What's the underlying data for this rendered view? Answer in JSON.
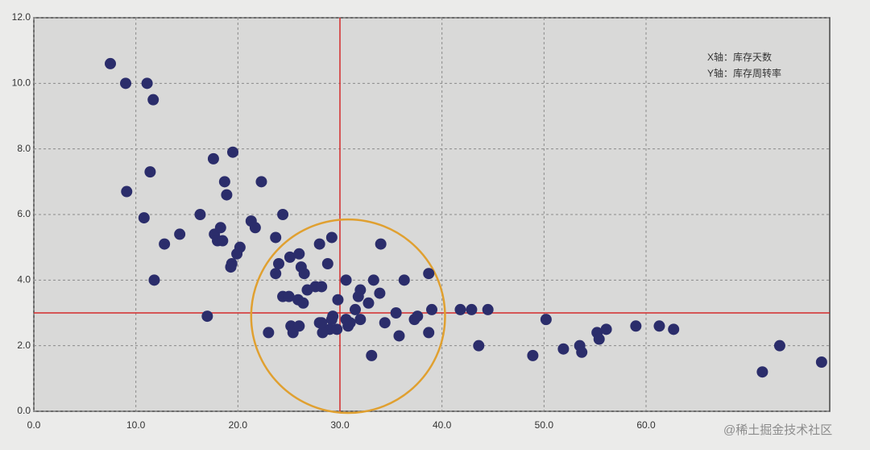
{
  "chart_data": {
    "type": "scatter",
    "annotations": [
      "X轴：库存天数",
      "Y轴：库存周转率"
    ],
    "watermark": "@稀土掘金技术社区",
    "series": [
      {
        "color": "#2b2d6b",
        "x": [
          7.5,
          9,
          11.1,
          11.7,
          9.1,
          11.4,
          10.8,
          11.8,
          12.8,
          14.3,
          16.3,
          17.6,
          19.5,
          18.7,
          18.9,
          22.3,
          17,
          17.7,
          18.3,
          18,
          18.5,
          20.2,
          19.9,
          19.4,
          19.3,
          21.3,
          21.7,
          24.4,
          23.7,
          24,
          23.7,
          25.1,
          26,
          26.2,
          26.5,
          28,
          29.2,
          28.8,
          34,
          24.4,
          25,
          25.9,
          26.4,
          26.8,
          27.6,
          28.2,
          29.8,
          30.6,
          32,
          31.8,
          33.3,
          33.9,
          36.3,
          38.7,
          32.8,
          31.5,
          29.3,
          29.2,
          28,
          29,
          29.7,
          31,
          30.8,
          32,
          30.6,
          35.5,
          34.4,
          37.3,
          37.6,
          39,
          38.7,
          35.8,
          33.1,
          23,
          25.2,
          25.4,
          26,
          28.3,
          28.2,
          41.8,
          42.9,
          44.5,
          43.6,
          50.2,
          48.9,
          51.9,
          53.5,
          53.7,
          55.2,
          55.4,
          56.1,
          59,
          61.3,
          62.7,
          71.4,
          73.1,
          77.2
        ],
        "values": [
          10.6,
          10,
          10,
          9.5,
          6.7,
          7.3,
          5.9,
          4,
          5.1,
          5.4,
          6,
          7.7,
          7.9,
          7,
          6.6,
          7,
          2.9,
          5.4,
          5.6,
          5.2,
          5.2,
          5,
          4.8,
          4.5,
          4.4,
          5.8,
          5.6,
          6,
          5.3,
          4.5,
          4.2,
          4.7,
          4.8,
          4.4,
          4.2,
          5.1,
          5.3,
          4.5,
          5.1,
          3.5,
          3.5,
          3.4,
          3.3,
          3.7,
          3.8,
          3.8,
          3.4,
          4,
          3.7,
          3.5,
          4,
          3.6,
          4,
          4.2,
          3.3,
          3.1,
          2.9,
          2.8,
          2.7,
          2.5,
          2.5,
          2.7,
          2.6,
          2.8,
          2.8,
          3,
          2.7,
          2.8,
          2.9,
          3.1,
          2.4,
          2.3,
          1.7,
          2.4,
          2.6,
          2.4,
          2.6,
          2.4,
          2.7,
          3.1,
          3.1,
          3.1,
          2,
          2.8,
          1.7,
          1.9,
          2,
          1.8,
          2.4,
          2.2,
          2.5,
          2.6,
          2.6,
          2.5,
          1.2,
          2,
          1.5
        ]
      }
    ],
    "reference_lines": {
      "x": 30,
      "y": 3,
      "color": "#d42a2a"
    },
    "highlight_ellipse": {
      "cx": 30.8,
      "cy": 2.9,
      "rx": 9.5,
      "ry": 2.95,
      "color": "#e0a030"
    },
    "xlim": [
      0,
      78
    ],
    "ylim": [
      0,
      12
    ],
    "xticks": [
      {
        "value": 0,
        "label": "0.0"
      },
      {
        "value": 10,
        "label": "10.0"
      },
      {
        "value": 20,
        "label": "20.0"
      },
      {
        "value": 30,
        "label": "30.0"
      },
      {
        "value": 40,
        "label": "40.0"
      },
      {
        "value": 50,
        "label": "50.0"
      },
      {
        "value": 60,
        "label": "60.0"
      }
    ],
    "yticks": [
      {
        "value": 0,
        "label": "0.0"
      },
      {
        "value": 2,
        "label": "2.0"
      },
      {
        "value": 4,
        "label": "4.0"
      },
      {
        "value": 6,
        "label": "6.0"
      },
      {
        "value": 8,
        "label": "8.0"
      },
      {
        "value": 10,
        "label": "10.0"
      },
      {
        "value": 12,
        "label": "12.0"
      }
    ],
    "grid": true
  }
}
